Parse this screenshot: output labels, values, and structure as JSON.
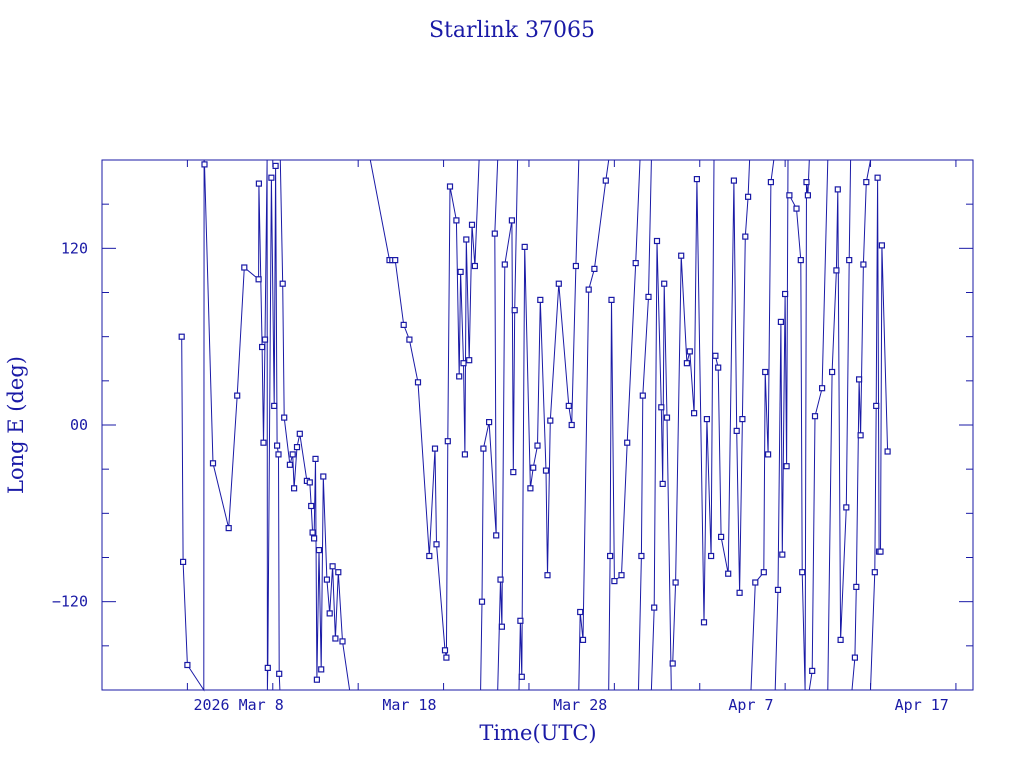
{
  "chart_data": {
    "type": "line",
    "title": "Starlink 37065",
    "xlabel": "Time(UTC)",
    "ylabel": "Long E (deg)",
    "x_unit": "date",
    "xlim": [
      "2026-02-28",
      "2026-04-20"
    ],
    "ylim": [
      -180,
      180
    ],
    "x_tick_labels": [
      {
        "date": "2026-03-08",
        "label": "2026 Mar  8"
      },
      {
        "date": "2026-03-18",
        "label": "Mar 18"
      },
      {
        "date": "2026-03-28",
        "label": "Mar 28"
      },
      {
        "date": "2026-04-07",
        "label": "Apr  7"
      },
      {
        "date": "2026-04-17",
        "label": "Apr 17"
      }
    ],
    "y_tick_labels": [
      {
        "value": 120,
        "label": "120"
      },
      {
        "value": 0,
        "label": "00"
      },
      {
        "value": -120,
        "label": "−120"
      }
    ],
    "grid": false,
    "colors": {
      "line": "#1a1aa6",
      "text": "#1a1aa6",
      "frame": "#1a1aa6"
    },
    "series": [
      {
        "values": [
          {
            "x": "2026-03-04T16:00",
            "y": 60
          },
          {
            "x": "2026-03-04T18:00",
            "y": -93
          },
          {
            "x": "2026-03-05T00:00",
            "y": -163
          },
          {
            "x": "2026-03-05T23:00",
            "y": -180
          },
          {
            "x": "2026-03-05T23:30",
            "y": 180
          },
          {
            "x": "2026-03-06T00:00",
            "y": 177
          },
          {
            "x": "2026-03-06T12:00",
            "y": -26
          },
          {
            "x": "2026-03-07T10:00",
            "y": -70
          },
          {
            "x": "2026-03-07T22:00",
            "y": 20
          },
          {
            "x": "2026-03-08T08:00",
            "y": 107
          },
          {
            "x": "2026-03-09T04:00",
            "y": 99
          },
          {
            "x": "2026-03-09T04:30",
            "y": 164
          },
          {
            "x": "2026-03-09T09:00",
            "y": 53
          },
          {
            "x": "2026-03-09T11:00",
            "y": -12
          },
          {
            "x": "2026-03-09T13:00",
            "y": 58
          },
          {
            "x": "2026-03-09T16:00",
            "y": 180
          },
          {
            "x": "2026-03-09T16:30",
            "y": -180
          },
          {
            "x": "2026-03-09T17:00",
            "y": -165
          },
          {
            "x": "2026-03-09T22:00",
            "y": 168
          },
          {
            "x": "2026-03-10T02:00",
            "y": 13
          },
          {
            "x": "2026-03-10T04:00",
            "y": 176
          },
          {
            "x": "2026-03-10T06:00",
            "y": -14
          },
          {
            "x": "2026-03-10T08:00",
            "y": -20
          },
          {
            "x": "2026-03-10T09:00",
            "y": -169
          },
          {
            "x": "2026-03-10T10:00",
            "y": -180
          }
        ]
      },
      {
        "values": [
          {
            "x": "2026-03-10T10:30",
            "y": 180
          },
          {
            "x": "2026-03-10T14:00",
            "y": 96
          },
          {
            "x": "2026-03-10T16:00",
            "y": 5
          },
          {
            "x": "2026-03-11T00:00",
            "y": -27
          },
          {
            "x": "2026-03-11T04:00",
            "y": -20
          },
          {
            "x": "2026-03-11T06:00",
            "y": -43
          },
          {
            "x": "2026-03-11T10:00",
            "y": -15
          },
          {
            "x": "2026-03-11T14:00",
            "y": -6
          },
          {
            "x": "2026-03-12T00:00",
            "y": -38
          },
          {
            "x": "2026-03-12T04:00",
            "y": -39
          },
          {
            "x": "2026-03-12T06:00",
            "y": -55
          },
          {
            "x": "2026-03-12T08:00",
            "y": -73
          },
          {
            "x": "2026-03-12T10:00",
            "y": -77
          },
          {
            "x": "2026-03-12T12:00",
            "y": -23
          },
          {
            "x": "2026-03-12T14:00",
            "y": -173
          },
          {
            "x": "2026-03-12T17:00",
            "y": -85
          },
          {
            "x": "2026-03-12T20:00",
            "y": -166
          },
          {
            "x": "2026-03-12T23:00",
            "y": -35
          },
          {
            "x": "2026-03-13T04:00",
            "y": -105
          },
          {
            "x": "2026-03-13T08:00",
            "y": -128
          },
          {
            "x": "2026-03-13T12:00",
            "y": -96
          },
          {
            "x": "2026-03-13T16:00",
            "y": -145
          },
          {
            "x": "2026-03-13T20:00",
            "y": -100
          },
          {
            "x": "2026-03-14T02:00",
            "y": -147
          },
          {
            "x": "2026-03-14T12:00",
            "y": -180
          }
        ]
      },
      {
        "values": [
          {
            "x": "2026-03-15T17:00",
            "y": 180
          },
          {
            "x": "2026-03-16T20:00",
            "y": 112
          },
          {
            "x": "2026-03-17T00:00",
            "y": 112
          },
          {
            "x": "2026-03-17T04:00",
            "y": 112
          },
          {
            "x": "2026-03-17T16:00",
            "y": 68
          },
          {
            "x": "2026-03-18T00:00",
            "y": 58
          },
          {
            "x": "2026-03-18T12:00",
            "y": 29
          },
          {
            "x": "2026-03-19T04:00",
            "y": -89
          },
          {
            "x": "2026-03-19T12:00",
            "y": -16
          },
          {
            "x": "2026-03-19T14:00",
            "y": -81
          },
          {
            "x": "2026-03-20T02:00",
            "y": -153
          },
          {
            "x": "2026-03-20T04:00",
            "y": -158
          },
          {
            "x": "2026-03-20T06:00",
            "y": -11
          },
          {
            "x": "2026-03-20T09:00",
            "y": 162
          },
          {
            "x": "2026-03-20T18:00",
            "y": 139
          },
          {
            "x": "2026-03-20T22:00",
            "y": 33
          },
          {
            "x": "2026-03-21T00:00",
            "y": 104
          },
          {
            "x": "2026-03-21T04:00",
            "y": 42
          },
          {
            "x": "2026-03-21T06:00",
            "y": -20
          },
          {
            "x": "2026-03-21T08:00",
            "y": 126
          },
          {
            "x": "2026-03-21T12:00",
            "y": 44
          },
          {
            "x": "2026-03-21T16:00",
            "y": 136
          },
          {
            "x": "2026-03-21T20:00",
            "y": 108
          },
          {
            "x": "2026-03-22T02:00",
            "y": 180
          }
        ]
      },
      {
        "values": [
          {
            "x": "2026-03-22T04:00",
            "y": -180
          },
          {
            "x": "2026-03-22T06:00",
            "y": -120
          },
          {
            "x": "2026-03-22T08:00",
            "y": -16
          },
          {
            "x": "2026-03-22T16:00",
            "y": 2
          },
          {
            "x": "2026-03-23T02:00",
            "y": -75
          },
          {
            "x": "2026-03-23T00:00",
            "y": 130
          },
          {
            "x": "2026-03-23T04:00",
            "y": 180
          }
        ]
      },
      {
        "values": [
          {
            "x": "2026-03-23T04:00",
            "y": -180
          },
          {
            "x": "2026-03-23T08:00",
            "y": -105
          },
          {
            "x": "2026-03-23T10:00",
            "y": -137
          },
          {
            "x": "2026-03-23T14:00",
            "y": 109
          },
          {
            "x": "2026-03-24T00:00",
            "y": 139
          },
          {
            "x": "2026-03-24T02:00",
            "y": -32
          },
          {
            "x": "2026-03-24T04:00",
            "y": 78
          },
          {
            "x": "2026-03-24T08:00",
            "y": 180
          }
        ]
      },
      {
        "values": [
          {
            "x": "2026-03-24T10:00",
            "y": -180
          },
          {
            "x": "2026-03-24T12:00",
            "y": -133
          },
          {
            "x": "2026-03-24T14:00",
            "y": -171
          },
          {
            "x": "2026-03-24T18:00",
            "y": 121
          },
          {
            "x": "2026-03-25T02:00",
            "y": -43
          },
          {
            "x": "2026-03-25T06:00",
            "y": -29
          },
          {
            "x": "2026-03-25T12:00",
            "y": -14
          },
          {
            "x": "2026-03-25T16:00",
            "y": 85
          },
          {
            "x": "2026-03-26T00:00",
            "y": -31
          },
          {
            "x": "2026-03-26T02:00",
            "y": -102
          },
          {
            "x": "2026-03-26T06:00",
            "y": 3
          },
          {
            "x": "2026-03-26T18:00",
            "y": 96
          },
          {
            "x": "2026-03-27T08:00",
            "y": 13
          },
          {
            "x": "2026-03-27T12:00",
            "y": 0
          },
          {
            "x": "2026-03-27T18:00",
            "y": 108
          },
          {
            "x": "2026-03-27T22:00",
            "y": 180
          }
        ]
      },
      {
        "values": [
          {
            "x": "2026-03-27T22:00",
            "y": -180
          },
          {
            "x": "2026-03-28T00:00",
            "y": -127
          },
          {
            "x": "2026-03-28T04:00",
            "y": -146
          },
          {
            "x": "2026-03-28T12:00",
            "y": 92
          },
          {
            "x": "2026-03-28T20:00",
            "y": 106
          },
          {
            "x": "2026-03-29T12:00",
            "y": 166
          },
          {
            "x": "2026-03-29T16:00",
            "y": 180
          }
        ]
      },
      {
        "values": [
          {
            "x": "2026-03-29T16:00",
            "y": -180
          },
          {
            "x": "2026-03-29T18:00",
            "y": -89
          },
          {
            "x": "2026-03-29T20:00",
            "y": 85
          },
          {
            "x": "2026-03-30T00:00",
            "y": -106
          },
          {
            "x": "2026-03-30T10:00",
            "y": -102
          },
          {
            "x": "2026-03-30T18:00",
            "y": -12
          },
          {
            "x": "2026-03-31T06:00",
            "y": 110
          },
          {
            "x": "2026-03-31T12:00",
            "y": 180
          }
        ]
      },
      {
        "values": [
          {
            "x": "2026-03-31T10:00",
            "y": -180
          },
          {
            "x": "2026-03-31T14:00",
            "y": -89
          },
          {
            "x": "2026-03-31T16:00",
            "y": 20
          },
          {
            "x": "2026-04-01T00:00",
            "y": 87
          },
          {
            "x": "2026-04-01T04:00",
            "y": 180
          }
        ]
      },
      {
        "values": [
          {
            "x": "2026-04-01T04:00",
            "y": -180
          },
          {
            "x": "2026-04-01T08:00",
            "y": -124
          },
          {
            "x": "2026-04-01T12:00",
            "y": 125
          },
          {
            "x": "2026-04-01T18:00",
            "y": 12
          },
          {
            "x": "2026-04-01T20:00",
            "y": -40
          },
          {
            "x": "2026-04-01T22:00",
            "y": 96
          },
          {
            "x": "2026-04-02T02:00",
            "y": 5
          },
          {
            "x": "2026-04-02T08:00",
            "y": -180
          }
        ]
      },
      {
        "values": [
          {
            "x": "2026-04-02T10:00",
            "y": -162
          },
          {
            "x": "2026-04-02T14:00",
            "y": -107
          },
          {
            "x": "2026-04-02T22:00",
            "y": 115
          },
          {
            "x": "2026-04-03T06:00",
            "y": 42
          },
          {
            "x": "2026-04-03T10:00",
            "y": 50
          },
          {
            "x": "2026-04-03T16:00",
            "y": 8
          },
          {
            "x": "2026-04-03T20:00",
            "y": 167
          },
          {
            "x": "2026-04-04T06:00",
            "y": -134
          },
          {
            "x": "2026-04-04T10:00",
            "y": 4
          },
          {
            "x": "2026-04-04T16:00",
            "y": -89
          },
          {
            "x": "2026-04-04T20:00",
            "y": 180
          }
        ]
      },
      {
        "values": [
          {
            "x": "2026-04-04T22:00",
            "y": 47
          },
          {
            "x": "2026-04-05T02:00",
            "y": 39
          },
          {
            "x": "2026-04-05T06:00",
            "y": -76
          },
          {
            "x": "2026-04-05T16:00",
            "y": -101
          },
          {
            "x": "2026-04-06T00:00",
            "y": 166
          },
          {
            "x": "2026-04-06T04:00",
            "y": -4
          },
          {
            "x": "2026-04-06T08:00",
            "y": -114
          },
          {
            "x": "2026-04-06T12:00",
            "y": 4
          },
          {
            "x": "2026-04-06T16:00",
            "y": 128
          },
          {
            "x": "2026-04-06T20:00",
            "y": 155
          },
          {
            "x": "2026-04-06T22:00",
            "y": 180
          }
        ]
      },
      {
        "values": [
          {
            "x": "2026-04-07T00:00",
            "y": -180
          },
          {
            "x": "2026-04-07T06:00",
            "y": -107
          },
          {
            "x": "2026-04-07T18:00",
            "y": -100
          },
          {
            "x": "2026-04-07T20:00",
            "y": 36
          },
          {
            "x": "2026-04-08T00:00",
            "y": -20
          },
          {
            "x": "2026-04-08T04:00",
            "y": 165
          },
          {
            "x": "2026-04-08T08:00",
            "y": 180
          }
        ]
      },
      {
        "values": [
          {
            "x": "2026-04-08T10:00",
            "y": -180
          },
          {
            "x": "2026-04-08T14:00",
            "y": -112
          },
          {
            "x": "2026-04-08T18:00",
            "y": 70
          },
          {
            "x": "2026-04-08T20:00",
            "y": -88
          },
          {
            "x": "2026-04-09T00:00",
            "y": 89
          },
          {
            "x": "2026-04-09T02:00",
            "y": -28
          },
          {
            "x": "2026-04-09T04:00",
            "y": 180
          }
        ]
      },
      {
        "values": [
          {
            "x": "2026-04-09T06:00",
            "y": 156
          },
          {
            "x": "2026-04-09T16:00",
            "y": 147
          },
          {
            "x": "2026-04-09T22:00",
            "y": 112
          },
          {
            "x": "2026-04-10T00:00",
            "y": -100
          },
          {
            "x": "2026-04-10T04:00",
            "y": -180
          },
          {
            "x": "2026-04-10T06:00",
            "y": 165
          },
          {
            "x": "2026-04-10T08:00",
            "y": 156
          },
          {
            "x": "2026-04-10T10:00",
            "y": 180
          }
        ]
      },
      {
        "values": [
          {
            "x": "2026-04-10T10:00",
            "y": -180
          },
          {
            "x": "2026-04-10T14:00",
            "y": -167
          },
          {
            "x": "2026-04-10T18:00",
            "y": 6
          },
          {
            "x": "2026-04-11T04:00",
            "y": 25
          },
          {
            "x": "2026-04-11T12:00",
            "y": 180
          }
        ]
      },
      {
        "values": [
          {
            "x": "2026-04-11T12:00",
            "y": -180
          },
          {
            "x": "2026-04-11T18:00",
            "y": 36
          },
          {
            "x": "2026-04-12T00:00",
            "y": 105
          },
          {
            "x": "2026-04-12T02:00",
            "y": 160
          },
          {
            "x": "2026-04-12T06:00",
            "y": -146
          },
          {
            "x": "2026-04-12T14:00",
            "y": -56
          },
          {
            "x": "2026-04-12T18:00",
            "y": 112
          },
          {
            "x": "2026-04-12T20:00",
            "y": 180
          }
        ]
      },
      {
        "values": [
          {
            "x": "2026-04-12T22:00",
            "y": -180
          },
          {
            "x": "2026-04-13T02:00",
            "y": -158
          },
          {
            "x": "2026-04-13T04:00",
            "y": -110
          },
          {
            "x": "2026-04-13T08:00",
            "y": 31
          },
          {
            "x": "2026-04-13T10:00",
            "y": -7
          },
          {
            "x": "2026-04-13T14:00",
            "y": 109
          },
          {
            "x": "2026-04-13T18:00",
            "y": 165
          },
          {
            "x": "2026-04-14T00:00",
            "y": 180
          }
        ]
      },
      {
        "values": [
          {
            "x": "2026-04-14T00:00",
            "y": -180
          },
          {
            "x": "2026-04-14T06:00",
            "y": -100
          },
          {
            "x": "2026-04-14T08:00",
            "y": 13
          },
          {
            "x": "2026-04-14T10:00",
            "y": 168
          },
          {
            "x": "2026-04-14T12:00",
            "y": -86
          },
          {
            "x": "2026-04-14T14:00",
            "y": -86
          },
          {
            "x": "2026-04-14T16:00",
            "y": 122
          },
          {
            "x": "2026-04-15T00:00",
            "y": -18
          }
        ]
      }
    ]
  }
}
